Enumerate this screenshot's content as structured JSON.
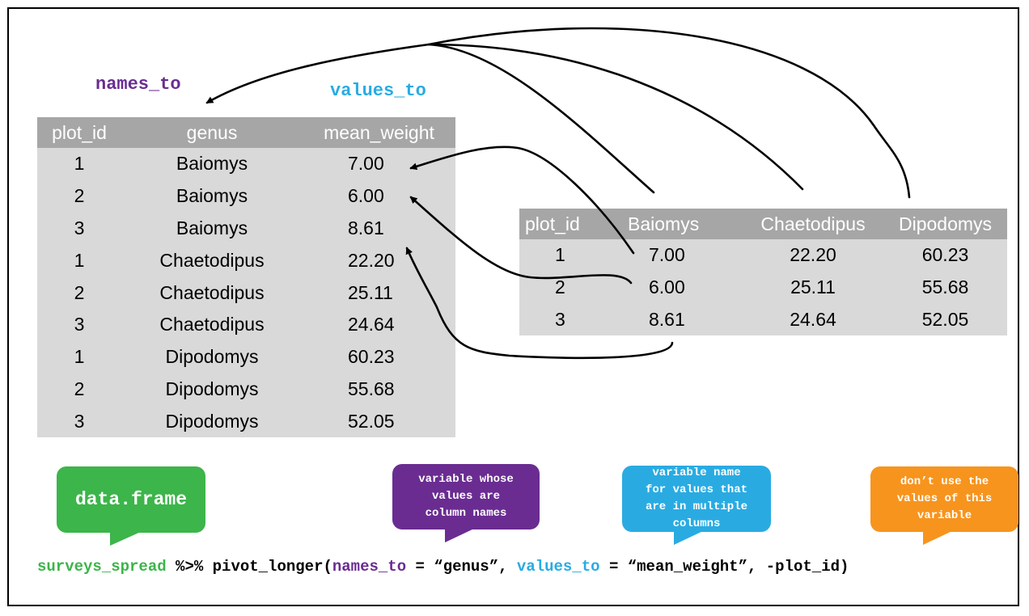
{
  "labels": {
    "names_to": "names_to",
    "values_to": "values_to"
  },
  "long_table": {
    "headers": [
      "plot_id",
      "genus",
      "mean_weight"
    ],
    "rows": [
      [
        "1",
        "Baiomys",
        "7.00"
      ],
      [
        "2",
        "Baiomys",
        "6.00"
      ],
      [
        "3",
        "Baiomys",
        "8.61"
      ],
      [
        "1",
        "Chaetodipus",
        "22.20"
      ],
      [
        "2",
        "Chaetodipus",
        "25.11"
      ],
      [
        "3",
        "Chaetodipus",
        "24.64"
      ],
      [
        "1",
        "Dipodomys",
        "60.23"
      ],
      [
        "2",
        "Dipodomys",
        "55.68"
      ],
      [
        "3",
        "Dipodomys",
        "52.05"
      ]
    ]
  },
  "wide_table": {
    "headers": [
      "plot_id",
      "Baiomys",
      "Chaetodipus",
      "Dipodomys"
    ],
    "rows": [
      [
        "1",
        "7.00",
        "22.20",
        "60.23"
      ],
      [
        "2",
        "6.00",
        "25.11",
        "55.68"
      ],
      [
        "3",
        "8.61",
        "24.64",
        "52.05"
      ]
    ]
  },
  "bubbles": {
    "dataframe": "data.frame",
    "names": [
      "variable whose",
      "values are",
      "column names"
    ],
    "values": [
      "variable name",
      "for values that",
      "are in multiple",
      "columns"
    ],
    "exclude": [
      "don’t use the",
      "values of this",
      "variable"
    ]
  },
  "code": {
    "p1": "surveys_spread",
    "p2": " %>% pivot_longer(",
    "p3": "names_to",
    "p4": " = “genus”, ",
    "p5": "values_to",
    "p6": " = “mean_weight”, -plot_id)"
  },
  "colors": {
    "green": "#3cb54a",
    "purple": "#6a2c91",
    "blue": "#29abe2",
    "orange": "#f7941d",
    "header_gray": "#a6a6a6",
    "cell_gray": "#d9d9d9"
  }
}
